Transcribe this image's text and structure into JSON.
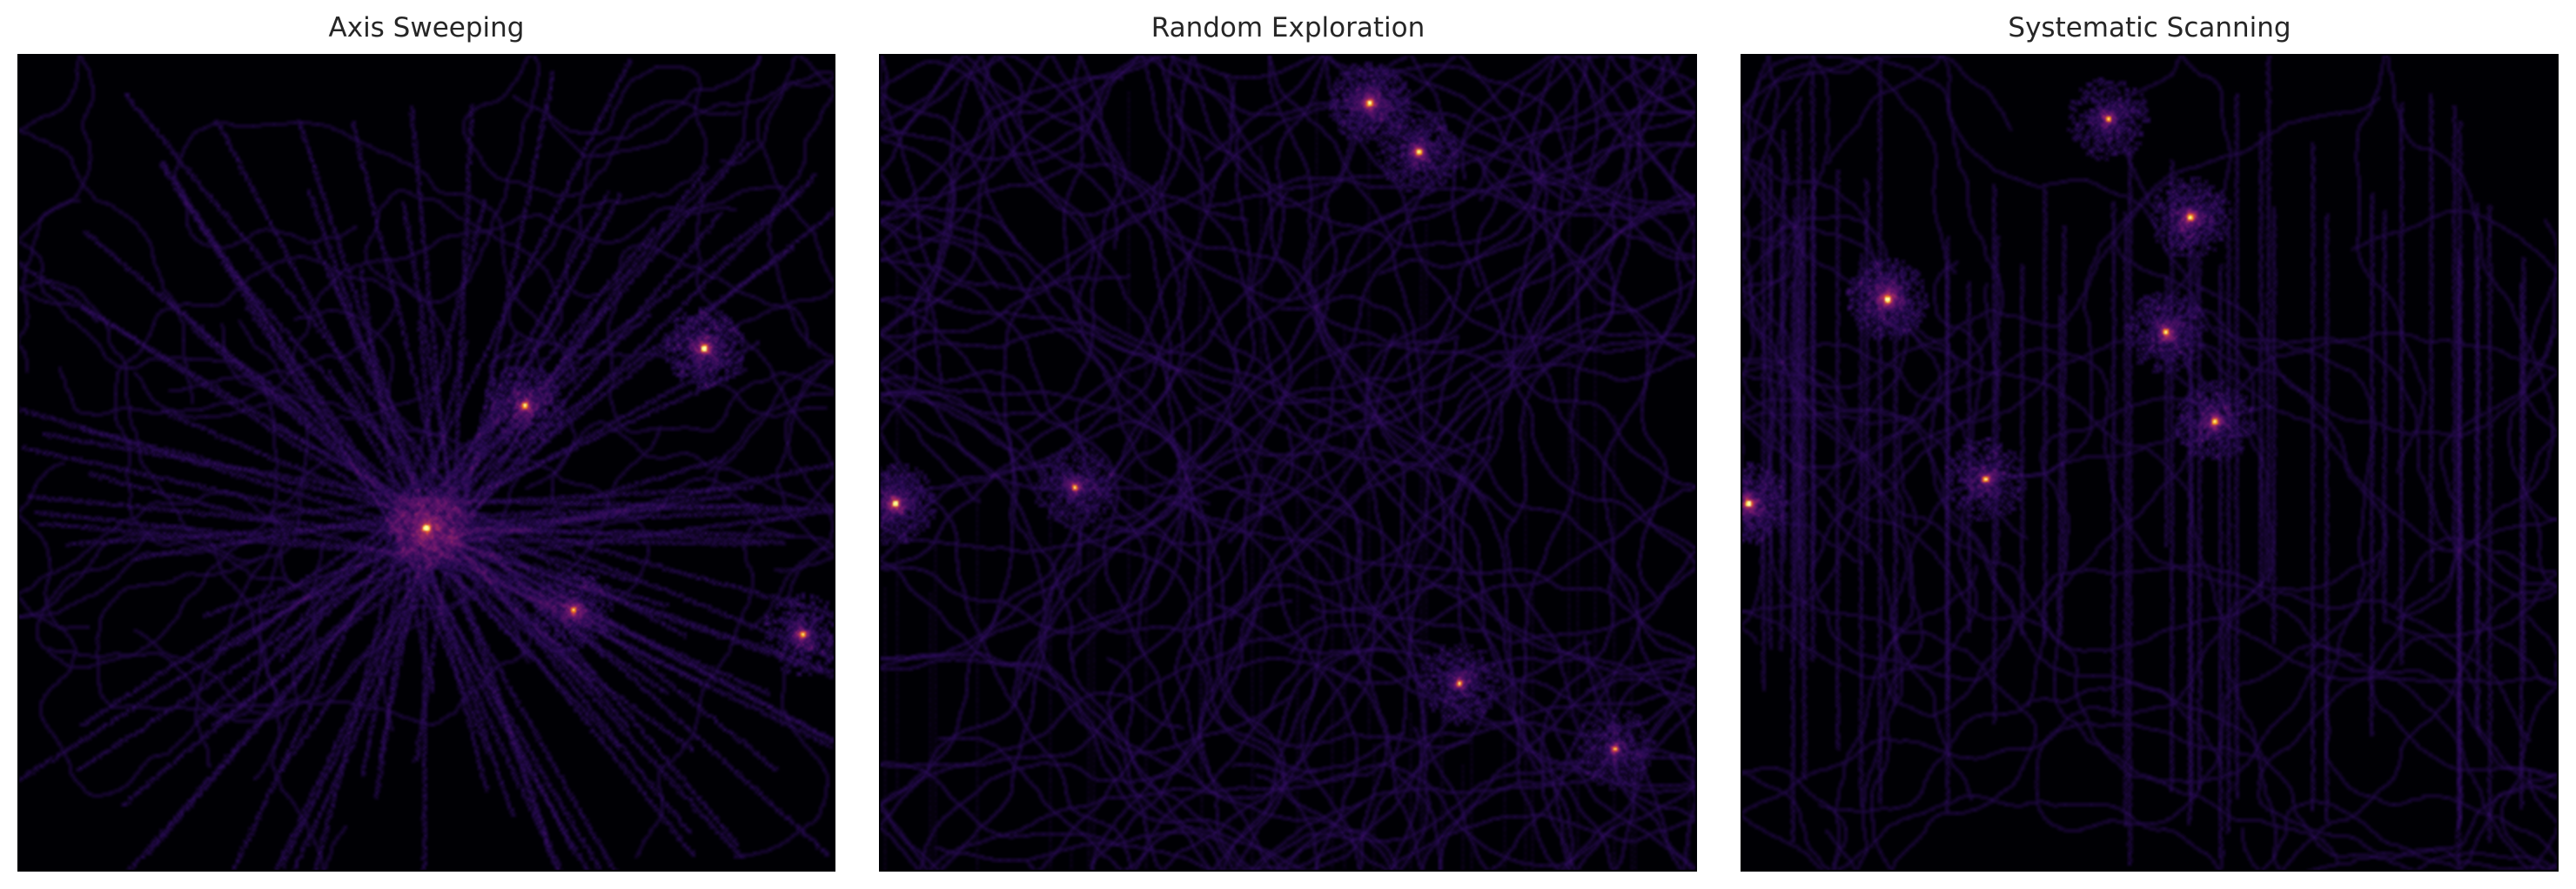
{
  "chart_data": [
    {
      "type": "heatmap",
      "title": "Axis Sweeping",
      "colormap": "inferno",
      "background": "#000004",
      "xlim": [
        0,
        1
      ],
      "ylim": [
        0,
        1
      ],
      "grid": false,
      "axes_visible": false,
      "pattern": "radial",
      "hotspot": {
        "x": 0.5,
        "y": 0.58,
        "intensity": 1.0
      },
      "secondary_hotspots": [
        {
          "x": 0.84,
          "y": 0.36,
          "intensity": 0.8
        },
        {
          "x": 0.62,
          "y": 0.43,
          "intensity": 0.6
        },
        {
          "x": 0.68,
          "y": 0.68,
          "intensity": 0.5
        },
        {
          "x": 0.96,
          "y": 0.71,
          "intensity": 0.5
        }
      ]
    },
    {
      "type": "heatmap",
      "title": "Random Exploration",
      "colormap": "inferno",
      "background": "#000004",
      "xlim": [
        0,
        1
      ],
      "ylim": [
        0,
        1
      ],
      "grid": false,
      "axes_visible": false,
      "pattern": "loops",
      "hotspot": {
        "x": 0.6,
        "y": 0.06,
        "intensity": 1.0
      },
      "secondary_hotspots": [
        {
          "x": 0.02,
          "y": 0.55,
          "intensity": 1.0
        },
        {
          "x": 0.66,
          "y": 0.12,
          "intensity": 0.8
        },
        {
          "x": 0.24,
          "y": 0.53,
          "intensity": 0.6
        },
        {
          "x": 0.71,
          "y": 0.77,
          "intensity": 0.6
        },
        {
          "x": 0.9,
          "y": 0.85,
          "intensity": 0.5
        }
      ]
    },
    {
      "type": "heatmap",
      "title": "Systematic Scanning",
      "colormap": "inferno",
      "background": "#000004",
      "xlim": [
        0,
        1
      ],
      "ylim": [
        0,
        1
      ],
      "grid": false,
      "axes_visible": false,
      "pattern": "vertical-sweeps",
      "hotspot": {
        "x": 0.18,
        "y": 0.3,
        "intensity": 1.0
      },
      "secondary_hotspots": [
        {
          "x": 0.01,
          "y": 0.55,
          "intensity": 0.9
        },
        {
          "x": 0.55,
          "y": 0.2,
          "intensity": 0.8
        },
        {
          "x": 0.52,
          "y": 0.34,
          "intensity": 0.7
        },
        {
          "x": 0.58,
          "y": 0.45,
          "intensity": 0.7
        },
        {
          "x": 0.45,
          "y": 0.08,
          "intensity": 0.6
        },
        {
          "x": 0.3,
          "y": 0.52,
          "intensity": 0.6
        }
      ]
    }
  ]
}
